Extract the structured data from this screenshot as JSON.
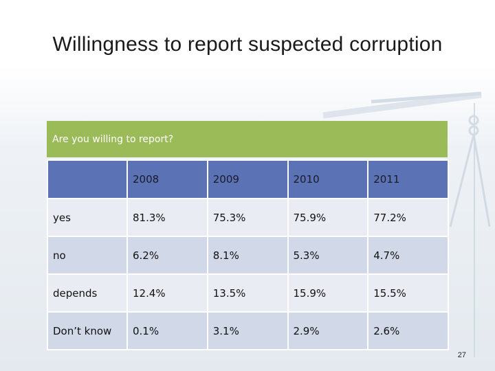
{
  "slide": {
    "title": "Willingness to report suspected corruption",
    "page_number": "27"
  },
  "table": {
    "caption": "Are you willing to report?",
    "columns": [
      "",
      "2008",
      "2009",
      "2010",
      "2011"
    ],
    "rows": [
      {
        "label": "yes",
        "values": [
          "81.3%",
          "75.3%",
          "75.9%",
          "77.2%"
        ]
      },
      {
        "label": "no",
        "values": [
          "6.2%",
          "8.1%",
          "5.3%",
          "4.7%"
        ]
      },
      {
        "label": "depends",
        "values": [
          "12.4%",
          "13.5%",
          "15.9%",
          "15.5%"
        ]
      },
      {
        "label": "Don’t know",
        "values": [
          "0.1%",
          "3.1%",
          "2.9%",
          "2.6%"
        ]
      }
    ]
  },
  "colors": {
    "caption_bg": "#9bbb59",
    "header_bg": "#5b73b4",
    "row_light": "#e9ecf3",
    "row_dark": "#d1d8e8"
  }
}
